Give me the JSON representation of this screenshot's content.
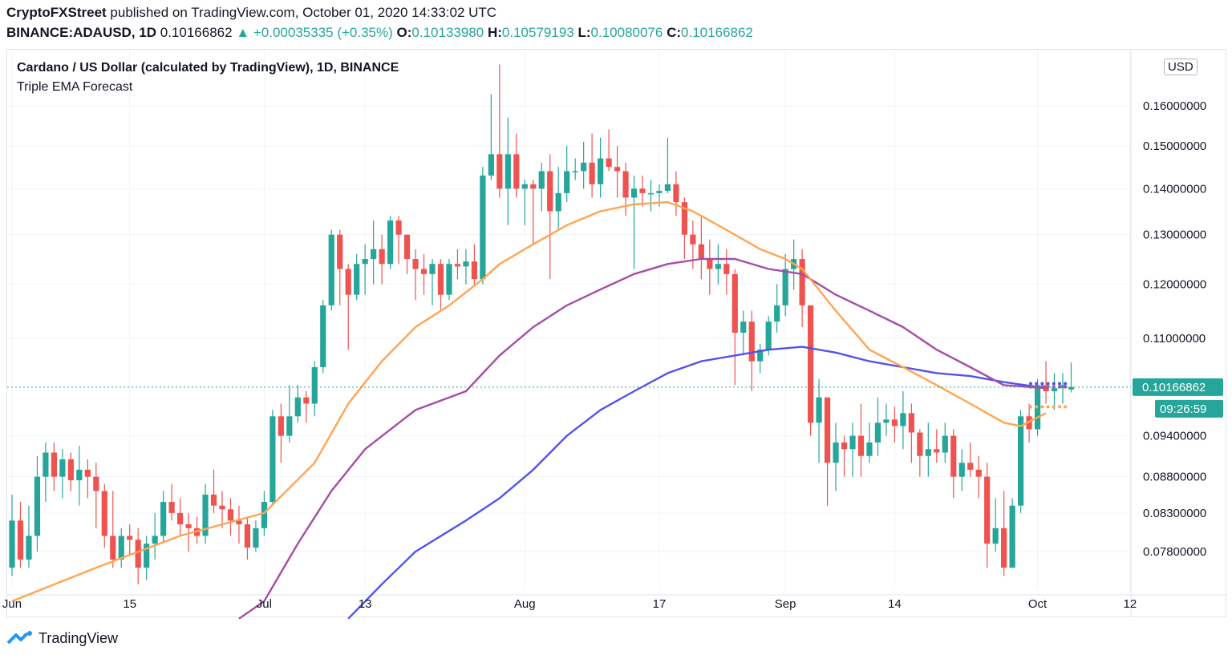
{
  "header": {
    "author": "CryptoFXStreet",
    "published": "published on TradingView.com, October 01, 2020 14:33:02 UTC",
    "symbol": "BINANCE:ADAUSD, 1D",
    "price": "0.10166862",
    "change": "▲ +0.00035335 (+0.35%)",
    "o_label": "O:",
    "o_val": "0.10133980",
    "h_label": "H:",
    "h_val": "0.10579193",
    "l_label": "L:",
    "l_val": "0.10080076",
    "c_label": "C:",
    "c_val": "0.10166862"
  },
  "legend": {
    "title": "Cardano / US Dollar (calculated by TradingView), 1D, BINANCE",
    "indicator": "Triple EMA Forecast"
  },
  "currency_button": "USD",
  "last_price_label": "0.10166862",
  "countdown_label": "09:26:59",
  "footer": {
    "brand": "TradingView"
  },
  "colors": {
    "up": "#26a69a",
    "down": "#ef5350",
    "ema_fast": "#ffa552",
    "ema_mid": "#a64ca6",
    "ema_slow": "#5352ed",
    "last_price": "#26a69a"
  },
  "chart_data": {
    "type": "candlestick",
    "title": "Cardano / US Dollar (calculated by TradingView), 1D, BINANCE",
    "x_ticks": [
      {
        "label": "Jun",
        "day": 0
      },
      {
        "label": "15",
        "day": 14
      },
      {
        "label": "Jul",
        "day": 30
      },
      {
        "label": "13",
        "day": 42
      },
      {
        "label": "Aug",
        "day": 61
      },
      {
        "label": "17",
        "day": 77
      },
      {
        "label": "Sep",
        "day": 92
      },
      {
        "label": "14",
        "day": 105
      },
      {
        "label": "Oct",
        "day": 122
      },
      {
        "label": "12",
        "day": 133
      }
    ],
    "y_ticks": [
      "0.16000000",
      "0.15000000",
      "0.14000000",
      "0.13000000",
      "0.12000000",
      "0.11000000",
      "0.09400000",
      "0.08800000",
      "0.08300000",
      "0.07800000"
    ],
    "ohlc": [
      [
        0.076,
        0.0855,
        0.075,
        0.082
      ],
      [
        0.082,
        0.0845,
        0.076,
        0.077
      ],
      [
        0.077,
        0.084,
        0.076,
        0.08
      ],
      [
        0.08,
        0.091,
        0.078,
        0.088
      ],
      [
        0.088,
        0.093,
        0.0845,
        0.0915
      ],
      [
        0.0915,
        0.093,
        0.086,
        0.088
      ],
      [
        0.088,
        0.092,
        0.085,
        0.0905
      ],
      [
        0.0905,
        0.0915,
        0.086,
        0.0875
      ],
      [
        0.0875,
        0.0925,
        0.084,
        0.089
      ],
      [
        0.089,
        0.0905,
        0.085,
        0.088
      ],
      [
        0.088,
        0.09,
        0.081,
        0.086
      ],
      [
        0.086,
        0.087,
        0.0785,
        0.08
      ],
      [
        0.08,
        0.086,
        0.076,
        0.077
      ],
      [
        0.077,
        0.081,
        0.076,
        0.08
      ],
      [
        0.08,
        0.0815,
        0.0775,
        0.0795
      ],
      [
        0.0795,
        0.081,
        0.074,
        0.076
      ],
      [
        0.076,
        0.08,
        0.0745,
        0.079
      ],
      [
        0.079,
        0.083,
        0.077,
        0.08
      ],
      [
        0.08,
        0.086,
        0.079,
        0.0845
      ],
      [
        0.0845,
        0.087,
        0.082,
        0.083
      ],
      [
        0.083,
        0.085,
        0.08,
        0.0815
      ],
      [
        0.0815,
        0.083,
        0.078,
        0.081
      ],
      [
        0.081,
        0.0825,
        0.079,
        0.08
      ],
      [
        0.08,
        0.087,
        0.079,
        0.0855
      ],
      [
        0.0855,
        0.089,
        0.083,
        0.084
      ],
      [
        0.084,
        0.086,
        0.081,
        0.0835
      ],
      [
        0.0835,
        0.085,
        0.08,
        0.082
      ],
      [
        0.082,
        0.084,
        0.079,
        0.0815
      ],
      [
        0.0815,
        0.0825,
        0.077,
        0.0785
      ],
      [
        0.0785,
        0.082,
        0.078,
        0.081
      ],
      [
        0.081,
        0.086,
        0.08,
        0.0845
      ],
      [
        0.0845,
        0.098,
        0.084,
        0.097
      ],
      [
        0.097,
        0.099,
        0.09,
        0.094
      ],
      [
        0.094,
        0.102,
        0.093,
        0.097
      ],
      [
        0.097,
        0.102,
        0.096,
        0.1
      ],
      [
        0.1,
        0.101,
        0.096,
        0.099
      ],
      [
        0.099,
        0.106,
        0.097,
        0.105
      ],
      [
        0.105,
        0.117,
        0.104,
        0.116
      ],
      [
        0.116,
        0.131,
        0.115,
        0.13
      ],
      [
        0.13,
        0.131,
        0.116,
        0.123
      ],
      [
        0.123,
        0.124,
        0.108,
        0.118
      ],
      [
        0.118,
        0.126,
        0.117,
        0.124
      ],
      [
        0.124,
        0.128,
        0.118,
        0.125
      ],
      [
        0.125,
        0.133,
        0.12,
        0.127
      ],
      [
        0.127,
        0.13,
        0.12,
        0.124
      ],
      [
        0.124,
        0.134,
        0.123,
        0.133
      ],
      [
        0.133,
        0.134,
        0.124,
        0.13
      ],
      [
        0.13,
        0.13,
        0.122,
        0.125
      ],
      [
        0.125,
        0.127,
        0.117,
        0.123
      ],
      [
        0.123,
        0.126,
        0.118,
        0.122
      ],
      [
        0.122,
        0.125,
        0.116,
        0.124
      ],
      [
        0.124,
        0.125,
        0.115,
        0.118
      ],
      [
        0.118,
        0.125,
        0.117,
        0.124
      ],
      [
        0.124,
        0.127,
        0.121,
        0.1235
      ],
      [
        0.1235,
        0.127,
        0.12,
        0.1245
      ],
      [
        0.1245,
        0.128,
        0.12,
        0.121
      ],
      [
        0.121,
        0.145,
        0.12,
        0.143
      ],
      [
        0.143,
        0.163,
        0.142,
        0.148
      ],
      [
        0.148,
        0.171,
        0.138,
        0.14
      ],
      [
        0.14,
        0.157,
        0.132,
        0.148
      ],
      [
        0.148,
        0.153,
        0.138,
        0.14
      ],
      [
        0.14,
        0.142,
        0.132,
        0.141
      ],
      [
        0.141,
        0.142,
        0.128,
        0.14
      ],
      [
        0.14,
        0.146,
        0.135,
        0.144
      ],
      [
        0.144,
        0.148,
        0.121,
        0.135
      ],
      [
        0.135,
        0.145,
        0.131,
        0.139
      ],
      [
        0.139,
        0.15,
        0.137,
        0.144
      ],
      [
        0.144,
        0.147,
        0.142,
        0.144
      ],
      [
        0.144,
        0.151,
        0.14,
        0.146
      ],
      [
        0.146,
        0.153,
        0.138,
        0.141
      ],
      [
        0.141,
        0.152,
        0.138,
        0.147
      ],
      [
        0.147,
        0.154,
        0.144,
        0.145
      ],
      [
        0.145,
        0.15,
        0.138,
        0.144
      ],
      [
        0.144,
        0.146,
        0.134,
        0.138
      ],
      [
        0.138,
        0.143,
        0.123,
        0.14
      ],
      [
        0.14,
        0.143,
        0.136,
        0.139
      ],
      [
        0.139,
        0.142,
        0.135,
        0.139
      ],
      [
        0.139,
        0.141,
        0.136,
        0.1395
      ],
      [
        0.1395,
        0.152,
        0.139,
        0.141
      ],
      [
        0.141,
        0.144,
        0.134,
        0.137
      ],
      [
        0.137,
        0.138,
        0.125,
        0.13
      ],
      [
        0.13,
        0.133,
        0.123,
        0.128
      ],
      [
        0.128,
        0.134,
        0.121,
        0.125
      ],
      [
        0.125,
        0.129,
        0.118,
        0.123
      ],
      [
        0.123,
        0.128,
        0.12,
        0.124
      ],
      [
        0.124,
        0.127,
        0.118,
        0.122
      ],
      [
        0.122,
        0.123,
        0.102,
        0.111
      ],
      [
        0.111,
        0.115,
        0.107,
        0.113
      ],
      [
        0.113,
        0.115,
        0.101,
        0.106
      ],
      [
        0.106,
        0.109,
        0.104,
        0.108
      ],
      [
        0.108,
        0.114,
        0.107,
        0.113
      ],
      [
        0.113,
        0.12,
        0.111,
        0.116
      ],
      [
        0.116,
        0.126,
        0.114,
        0.123
      ],
      [
        0.123,
        0.129,
        0.119,
        0.125
      ],
      [
        0.125,
        0.127,
        0.112,
        0.116
      ],
      [
        0.116,
        0.116,
        0.094,
        0.096
      ],
      [
        0.096,
        0.103,
        0.09,
        0.1
      ],
      [
        0.1,
        0.1,
        0.084,
        0.09
      ],
      [
        0.09,
        0.096,
        0.086,
        0.093
      ],
      [
        0.093,
        0.094,
        0.088,
        0.092
      ],
      [
        0.092,
        0.096,
        0.088,
        0.094
      ],
      [
        0.094,
        0.099,
        0.088,
        0.091
      ],
      [
        0.091,
        0.096,
        0.09,
        0.093
      ],
      [
        0.093,
        0.1,
        0.091,
        0.096
      ],
      [
        0.096,
        0.099,
        0.094,
        0.0965
      ],
      [
        0.0965,
        0.0985,
        0.093,
        0.0955
      ],
      [
        0.0955,
        0.101,
        0.092,
        0.0975
      ],
      [
        0.0975,
        0.099,
        0.09,
        0.0945
      ],
      [
        0.0945,
        0.095,
        0.088,
        0.091
      ],
      [
        0.091,
        0.096,
        0.088,
        0.092
      ],
      [
        0.092,
        0.095,
        0.09,
        0.0915
      ],
      [
        0.0915,
        0.096,
        0.09,
        0.094
      ],
      [
        0.094,
        0.095,
        0.085,
        0.088
      ],
      [
        0.088,
        0.092,
        0.086,
        0.09
      ],
      [
        0.09,
        0.093,
        0.088,
        0.089
      ],
      [
        0.089,
        0.091,
        0.085,
        0.088
      ],
      [
        0.088,
        0.09,
        0.076,
        0.079
      ],
      [
        0.079,
        0.085,
        0.078,
        0.081
      ],
      [
        0.081,
        0.086,
        0.075,
        0.076
      ],
      [
        0.076,
        0.085,
        0.076,
        0.084
      ],
      [
        0.084,
        0.098,
        0.083,
        0.097
      ],
      [
        0.097,
        0.099,
        0.093,
        0.095
      ],
      [
        0.095,
        0.103,
        0.094,
        0.102
      ],
      [
        0.102,
        0.106,
        0.099,
        0.101
      ],
      [
        0.101,
        0.104,
        0.098,
        0.1015
      ],
      [
        0.1015,
        0.104,
        0.099,
        0.102
      ],
      [
        0.1013,
        0.1058,
        0.1008,
        0.1017
      ]
    ],
    "ema_fast": [
      [
        0,
        0.072
      ],
      [
        10,
        0.076
      ],
      [
        20,
        0.08
      ],
      [
        30,
        0.083
      ],
      [
        36,
        0.09
      ],
      [
        40,
        0.099
      ],
      [
        44,
        0.106
      ],
      [
        48,
        0.112
      ],
      [
        52,
        0.116
      ],
      [
        56,
        0.121
      ],
      [
        58,
        0.124
      ],
      [
        62,
        0.128
      ],
      [
        66,
        0.132
      ],
      [
        70,
        0.135
      ],
      [
        74,
        0.1365
      ],
      [
        78,
        0.137
      ],
      [
        81,
        0.135
      ],
      [
        85,
        0.131
      ],
      [
        89,
        0.127
      ],
      [
        92,
        0.125
      ],
      [
        94,
        0.123
      ],
      [
        98,
        0.115
      ],
      [
        102,
        0.108
      ],
      [
        106,
        0.105
      ],
      [
        110,
        0.102
      ],
      [
        114,
        0.099
      ],
      [
        118,
        0.096
      ],
      [
        120,
        0.0955
      ],
      [
        123,
        0.0975
      ]
    ],
    "ema_mid": [
      [
        27,
        0.07
      ],
      [
        30,
        0.072
      ],
      [
        34,
        0.079
      ],
      [
        38,
        0.086
      ],
      [
        42,
        0.092
      ],
      [
        48,
        0.098
      ],
      [
        54,
        0.101
      ],
      [
        58,
        0.107
      ],
      [
        62,
        0.112
      ],
      [
        66,
        0.116
      ],
      [
        70,
        0.119
      ],
      [
        74,
        0.122
      ],
      [
        78,
        0.124
      ],
      [
        82,
        0.125
      ],
      [
        86,
        0.125
      ],
      [
        90,
        0.123
      ],
      [
        94,
        0.122
      ],
      [
        98,
        0.118
      ],
      [
        102,
        0.115
      ],
      [
        106,
        0.112
      ],
      [
        110,
        0.108
      ],
      [
        114,
        0.105
      ],
      [
        118,
        0.102
      ],
      [
        123,
        0.1015
      ]
    ],
    "ema_slow": [
      [
        40,
        0.07
      ],
      [
        44,
        0.074
      ],
      [
        48,
        0.078
      ],
      [
        54,
        0.082
      ],
      [
        58,
        0.085
      ],
      [
        62,
        0.089
      ],
      [
        66,
        0.094
      ],
      [
        70,
        0.098
      ],
      [
        74,
        0.101
      ],
      [
        78,
        0.104
      ],
      [
        82,
        0.106
      ],
      [
        86,
        0.107
      ],
      [
        90,
        0.108
      ],
      [
        94,
        0.1085
      ],
      [
        98,
        0.1075
      ],
      [
        102,
        0.106
      ],
      [
        106,
        0.105
      ],
      [
        110,
        0.104
      ],
      [
        114,
        0.1035
      ],
      [
        118,
        0.1025
      ],
      [
        123,
        0.1015
      ]
    ],
    "forecast": {
      "fast": 0.0985,
      "mid": 0.1017,
      "slow": 0.1016
    },
    "last_price": 0.10166862
  }
}
